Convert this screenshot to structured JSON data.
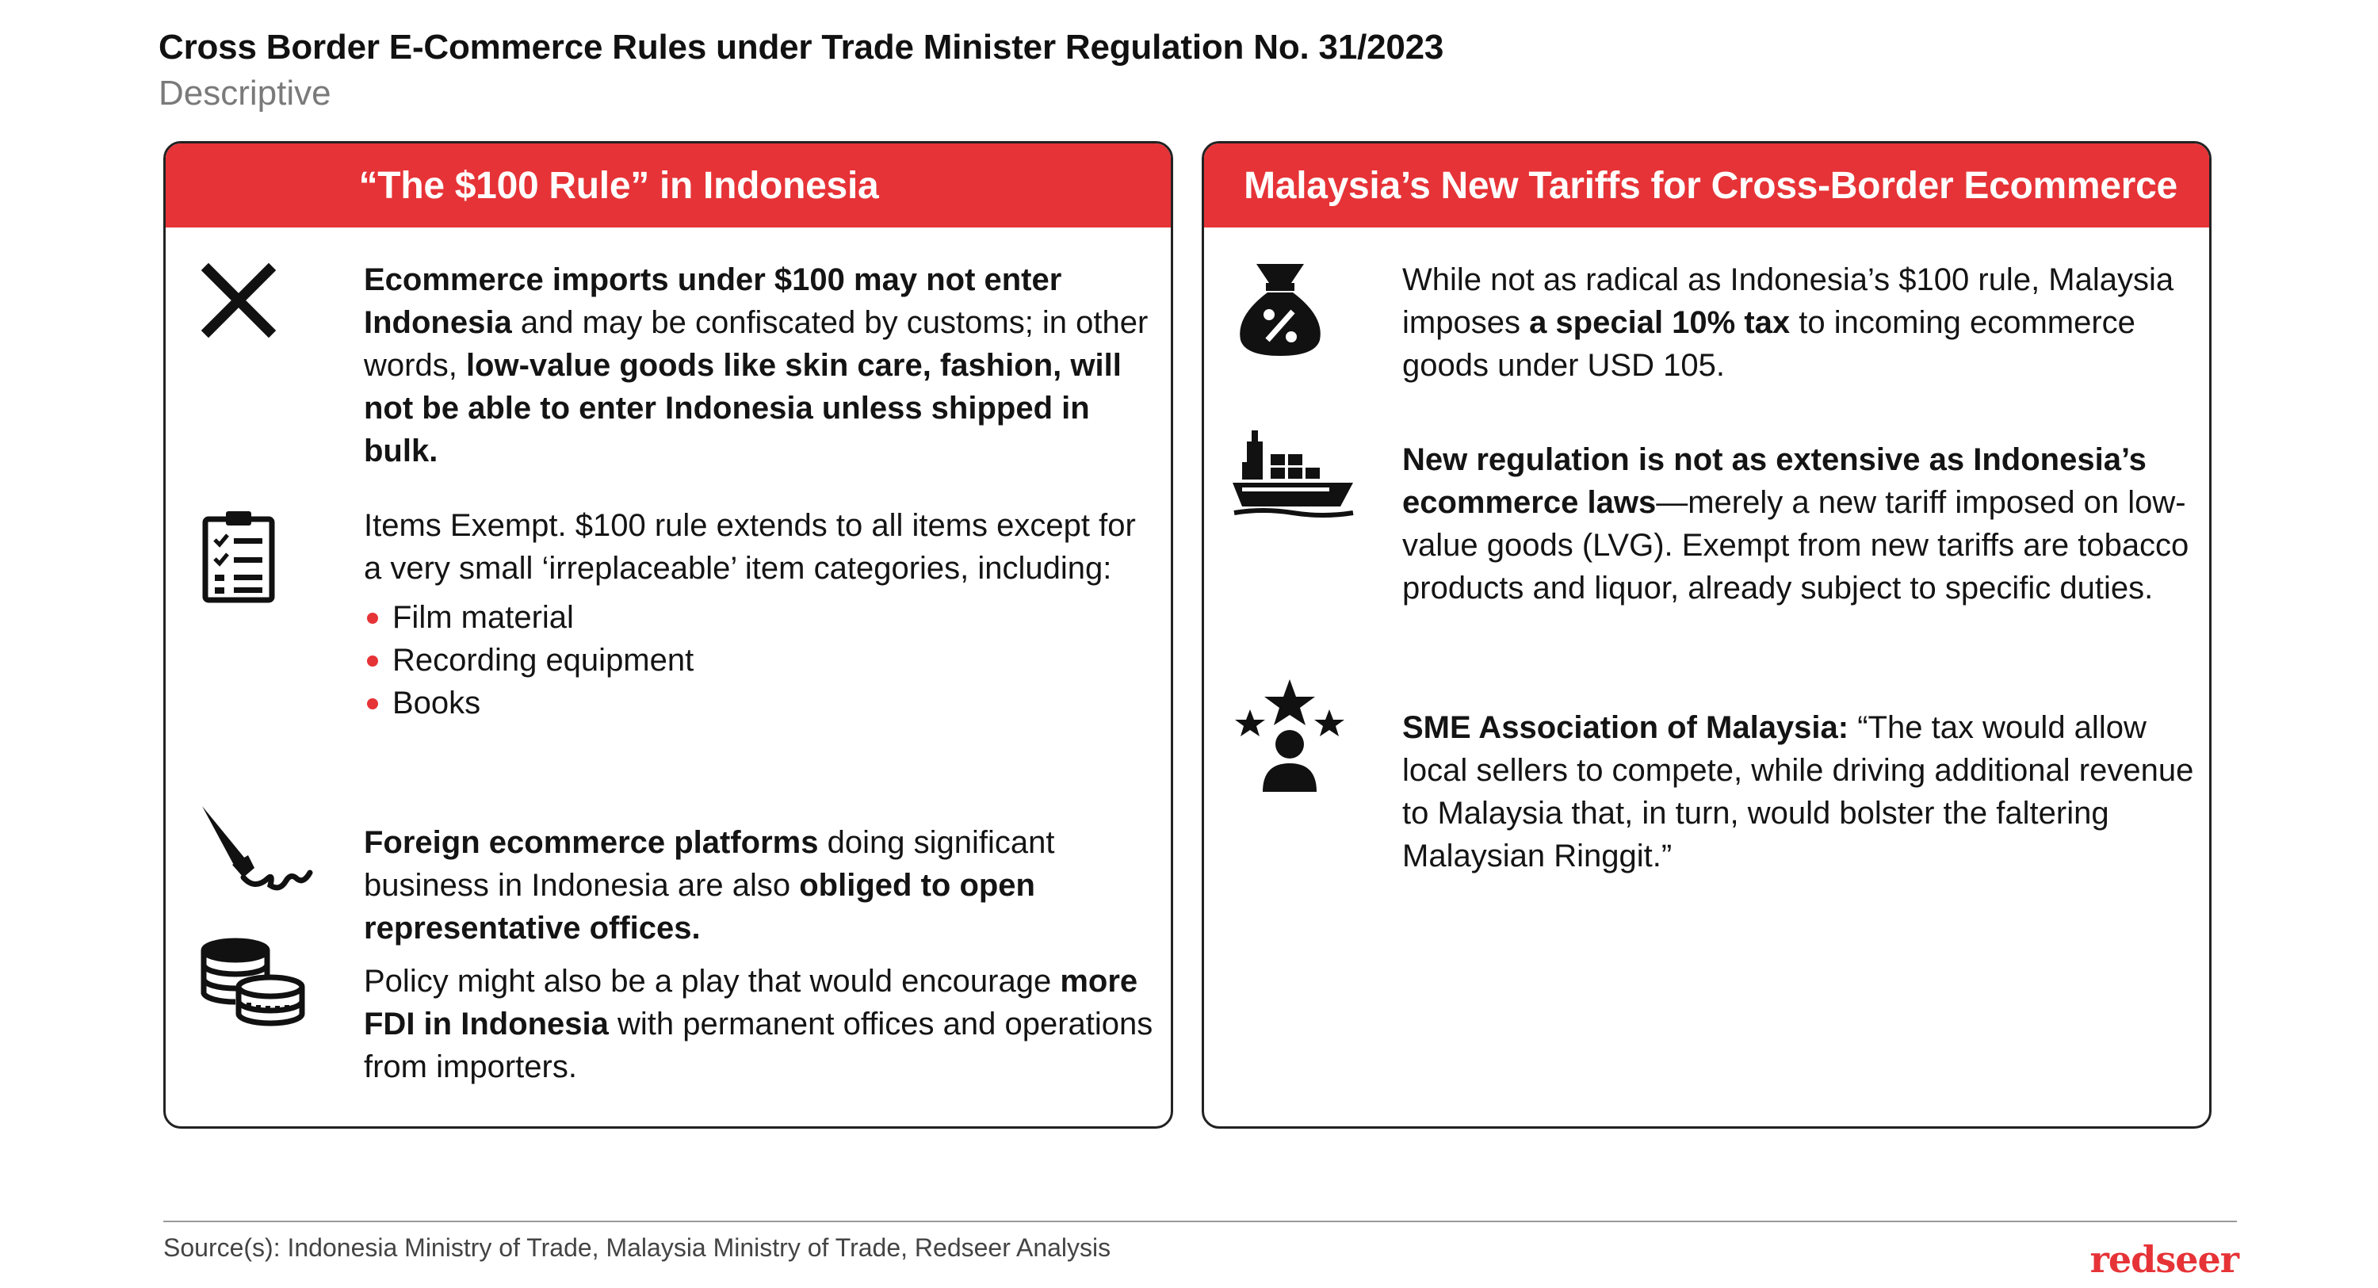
{
  "header": {
    "title": "Cross Border E-Commerce Rules under Trade Minister Regulation No. 31/2023",
    "subtitle": "Descriptive"
  },
  "left_panel": {
    "heading": "“The $100 Rule” in Indonesia",
    "items": [
      {
        "icon": "cross-icon",
        "b1": "Ecommerce imports under $100 may not enter Indonesia",
        "t1": " and may be confiscated by customs; in other words, ",
        "b2": "low-value goods like skin care, fashion, will not be able to enter Indonesia unless shipped in bulk."
      },
      {
        "icon": "checklist-clipboard-icon",
        "t1": "Items Exempt. $100 rule extends to all items except for a very small ‘irreplaceable’ item categories, including:",
        "bullets": [
          "Film material",
          "Recording equipment",
          "Books"
        ]
      },
      {
        "icon": "signing-pen-icon",
        "b1": "Foreign ecommerce platforms",
        "t1": " doing significant business in Indonesia are also ",
        "b2": "obliged to open representative offices."
      },
      {
        "icon": "coin-stacks-icon",
        "t1": "Policy might also be a play that would encourage ",
        "b1": "more FDI in Indonesia",
        "t2": " with permanent offices and operations from importers."
      }
    ]
  },
  "right_panel": {
    "heading": "Malaysia’s New Tariffs for Cross-Border Ecommerce",
    "items": [
      {
        "icon": "money-bag-percent-icon",
        "t1": "While not as radical as Indonesia’s $100 rule, Malaysia imposes ",
        "b1": "a special 10% tax",
        "t2": " to incoming ecommerce goods under USD 105."
      },
      {
        "icon": "cargo-ship-icon",
        "b1": "New regulation is not as extensive as Indonesia’s ecommerce laws",
        "t1": "—merely a new tariff imposed on low-value goods (LVG). Exempt from new tariffs are tobacco products and liquor, already subject to specific duties."
      },
      {
        "icon": "person-stars-icon",
        "b1": "SME Association of Malaysia:",
        "t1": " “The tax would allow local sellers to compete, while driving additional revenue to Malaysia that, in turn, would bolster the faltering Malaysian Ringgit.”"
      }
    ]
  },
  "footer": {
    "source": "Source(s): Indonesia Ministry of Trade,  Malaysia Ministry of Trade, Redseer Analysis",
    "logo": "redseer"
  },
  "colors": {
    "accent": "#e63337",
    "text": "#111111",
    "muted": "#7a7a7a"
  }
}
